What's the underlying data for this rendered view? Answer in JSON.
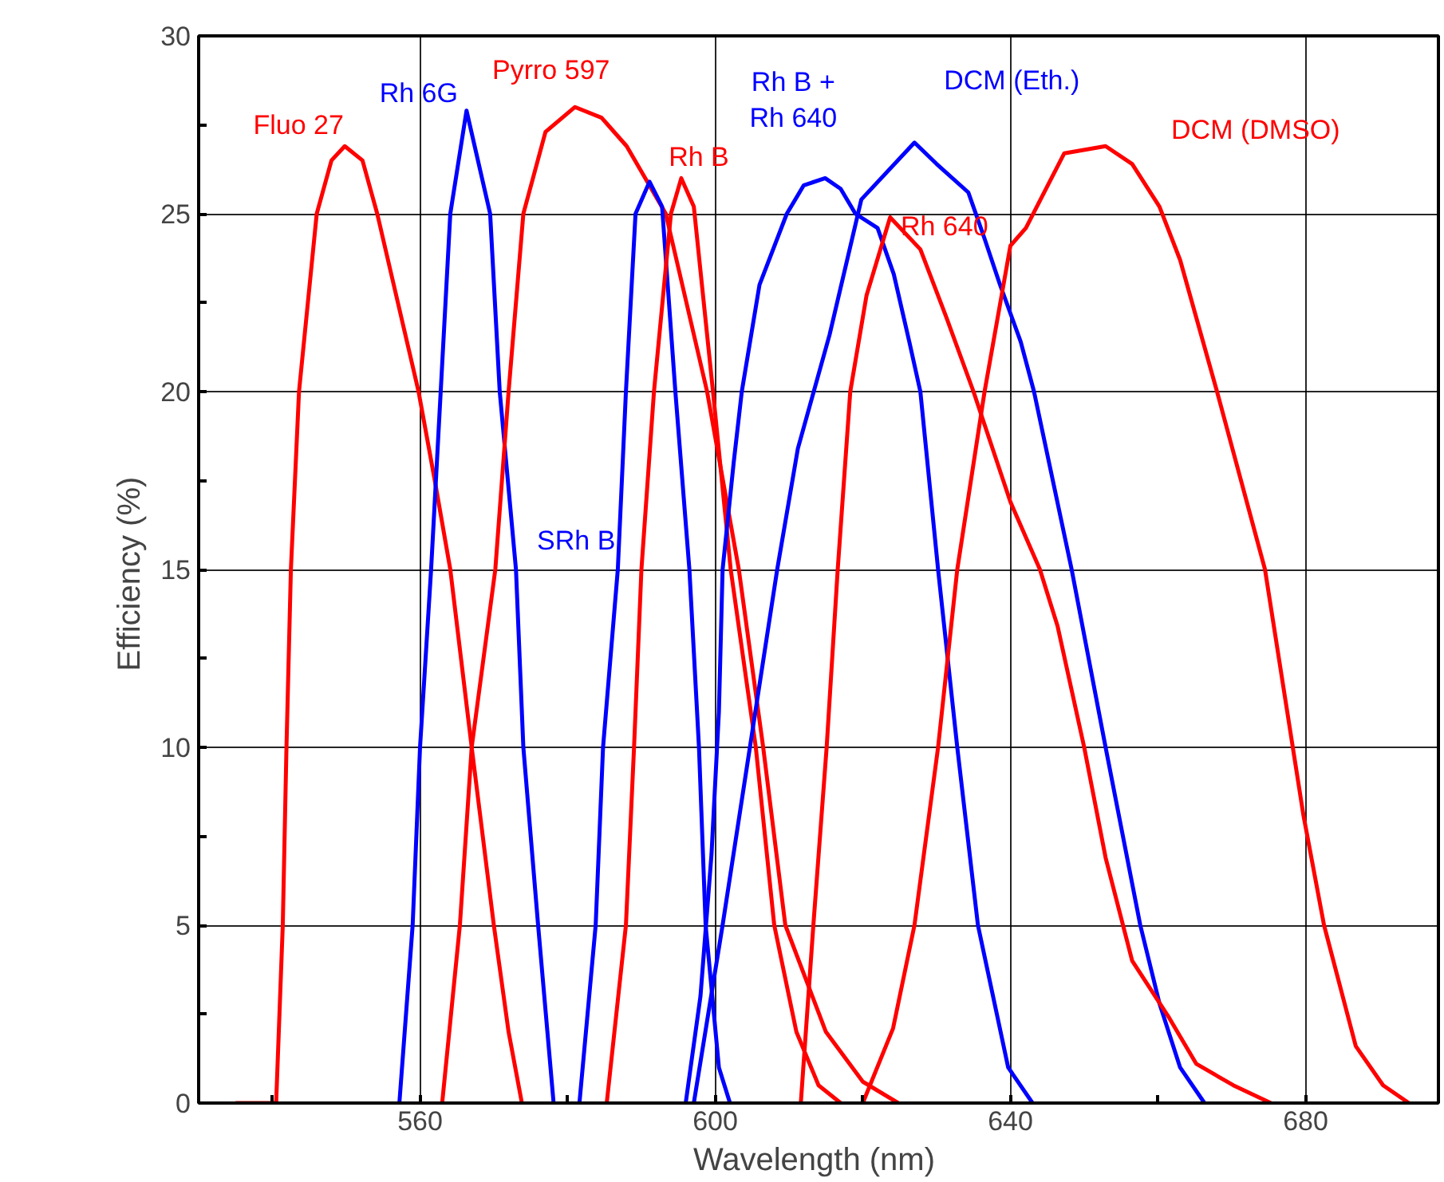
{
  "chart_data": {
    "type": "line",
    "xlabel": "Wavelength  (nm)",
    "ylabel": "Efficiency  (%)",
    "xlim": [
      530,
      698
    ],
    "ylim": [
      0,
      30
    ],
    "xticks": [
      {
        "value": 540,
        "label": null
      },
      560,
      {
        "value": 580,
        "label": null
      },
      600,
      {
        "value": 620,
        "label": null
      },
      640,
      {
        "value": 660,
        "label": null
      },
      680
    ],
    "yticks": [
      0,
      {
        "value": 2.5,
        "label": null
      },
      5,
      {
        "value": 7.5,
        "label": null
      },
      10,
      {
        "value": 12.5,
        "label": null
      },
      15,
      {
        "value": 17.5,
        "label": null
      },
      20,
      {
        "value": 22.5,
        "label": null
      },
      25,
      {
        "value": 27.5,
        "label": null
      },
      30
    ],
    "grid": true,
    "legend": false,
    "marker": "none",
    "line_style": "solid",
    "series": [
      {
        "name": "Fluo 27",
        "color": "#ff0000",
        "x": [
          535,
          540.5,
          541.4,
          541.9,
          542.5,
          543.6,
          546,
          548,
          549.8,
          552.2,
          554.2,
          557,
          559.8,
          562,
          564.1,
          567,
          570,
          572,
          573.8
        ],
        "values": [
          0,
          0,
          5,
          10,
          15,
          20,
          25,
          26.5,
          26.9,
          26.5,
          25,
          22.5,
          20,
          17.5,
          15,
          10,
          5,
          2,
          0
        ]
      },
      {
        "name": "Rh 6G",
        "color": "#0000ff",
        "x": [
          557.2,
          559,
          560,
          561.5,
          562.8,
          564.1,
          566.3,
          569.5,
          570.8,
          573,
          574,
          576,
          578.1
        ],
        "values": [
          0,
          5,
          10,
          15,
          20,
          25,
          27.9,
          25,
          20,
          15,
          10,
          5,
          0
        ]
      },
      {
        "name": "Pyrro 597",
        "color": "#ff0000",
        "x": [
          563,
          565.4,
          567,
          570.2,
          572,
          574,
          577,
          581,
          584.6,
          588,
          592.2,
          593.3,
          598.9,
          603.2,
          606.5,
          609.5,
          615,
          620,
          624.8
        ],
        "values": [
          0,
          5,
          10,
          15,
          20,
          25,
          27.3,
          28,
          27.7,
          26.9,
          25.4,
          25,
          20,
          15,
          10,
          5,
          2,
          0.6,
          0
        ]
      },
      {
        "name": "SRh B",
        "color": "#0000ff",
        "x": [
          581.6,
          583.8,
          584.8,
          586.8,
          587.9,
          589.2,
          591.1,
          592.8,
          594.6,
          596.5,
          597.8,
          598.7,
          600.5,
          602
        ],
        "values": [
          0,
          5,
          10,
          15,
          20,
          25,
          25.9,
          25.2,
          20,
          15,
          10,
          5,
          1,
          0
        ]
      },
      {
        "name": "Rh B",
        "color": "#ff0000",
        "x": [
          585.3,
          587.9,
          589,
          590,
          591.7,
          594,
          595.4,
          597.1,
          599.7,
          602.1,
          605.5,
          608,
          611,
          614,
          617
        ],
        "values": [
          0,
          5,
          10,
          15,
          20,
          25,
          26,
          25.2,
          20,
          15,
          10,
          5,
          2,
          0.5,
          0
        ]
      },
      {
        "name": "Rh B +\nRh 640",
        "color": "#0000ff",
        "x": [
          596,
          598,
          599.5,
          600.5,
          601,
          602.5,
          603.6,
          606,
          609.7,
          612,
          614.9,
          617,
          619,
          622,
          624.2,
          626.3,
          627.8,
          630.2,
          632.8,
          635.6,
          639.7,
          643
        ],
        "values": [
          0,
          3,
          7,
          11,
          15,
          18,
          20,
          23,
          25,
          25.8,
          26,
          25.7,
          25,
          24.6,
          23.3,
          21.4,
          20,
          15,
          10,
          5,
          1,
          0
        ]
      },
      {
        "name": "DCM (Eth.)",
        "color": "#0000ff",
        "x": [
          597.1,
          601,
          604.7,
          608.4,
          611.2,
          615.5,
          619.8,
          627,
          630,
          634.3,
          636.5,
          638.6,
          641.4,
          643.2,
          648.3,
          652.9,
          657.6,
          660.2,
          663,
          666.3
        ],
        "values": [
          0,
          5,
          10,
          15,
          18.4,
          21.6,
          25.4,
          27,
          26.4,
          25.6,
          24.3,
          23,
          21.4,
          20,
          15,
          10,
          5,
          2.8,
          1,
          0
        ]
      },
      {
        "name": "Rh 640",
        "color": "#ff0000",
        "x": [
          611.6,
          613.3,
          615.1,
          616.6,
          618.3,
          620.5,
          623.7,
          627.8,
          631.3,
          635,
          640,
          644,
          646.4,
          650,
          652.9,
          656.5,
          661.5,
          665.2,
          670.2,
          675.3
        ],
        "values": [
          0,
          5,
          10,
          15,
          20,
          22.7,
          24.9,
          24,
          22.1,
          20,
          16.9,
          15,
          13.4,
          10,
          6.9,
          4,
          2.4,
          1.1,
          0.5,
          0
        ]
      },
      {
        "name": "DCM (DMSO)",
        "color": "#ff0000",
        "x": [
          620,
          624.1,
          627,
          630.2,
          632.8,
          636.5,
          640,
          642.1,
          647.3,
          652.9,
          656.5,
          660.2,
          663,
          668,
          674.5,
          679.7,
          682.5,
          686.8,
          690.5,
          694
        ],
        "values": [
          0,
          2.1,
          5,
          10,
          15,
          20,
          24.1,
          24.6,
          26.7,
          26.9,
          26.4,
          25.2,
          23.7,
          20,
          15,
          8.1,
          5,
          1.6,
          0.5,
          0
        ]
      }
    ]
  }
}
